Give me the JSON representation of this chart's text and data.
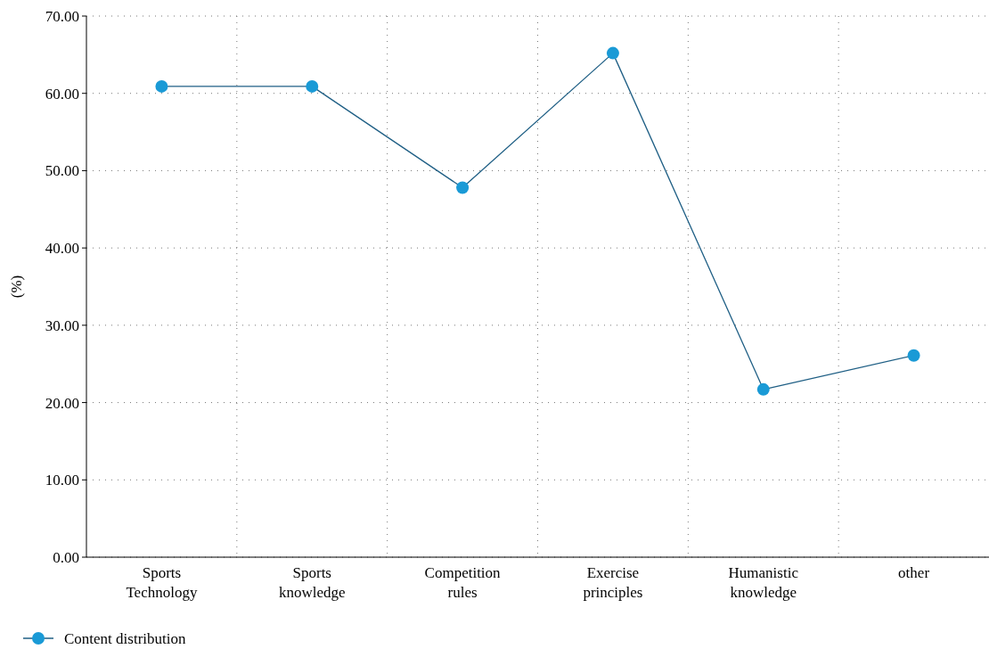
{
  "chart_data": {
    "type": "line",
    "ylabel": "(%)",
    "categories": [
      "Sports\nTechnology",
      "Sports\nknowledge",
      "Competition\nrules",
      "Exercise\nprinciples",
      "Humanistic\nknowledge",
      "other"
    ],
    "series": [
      {
        "name": "Content distribution",
        "color": "#1a9ad6",
        "values": [
          60.9,
          60.9,
          47.8,
          65.2,
          21.7,
          26.1
        ]
      }
    ],
    "ylim": [
      0,
      70
    ],
    "yticks": [
      {
        "value": 0,
        "label": "0.00"
      },
      {
        "value": 10,
        "label": "10.00"
      },
      {
        "value": 20,
        "label": "20.00"
      },
      {
        "value": 30,
        "label": "30.00"
      },
      {
        "value": 40,
        "label": "40.00"
      },
      {
        "value": 50,
        "label": "50.00"
      },
      {
        "value": 60,
        "label": "60.00"
      },
      {
        "value": 70,
        "label": "70.00"
      }
    ],
    "grid": true,
    "legend": "bottom left",
    "marker": "circle",
    "line_style": "solid"
  }
}
